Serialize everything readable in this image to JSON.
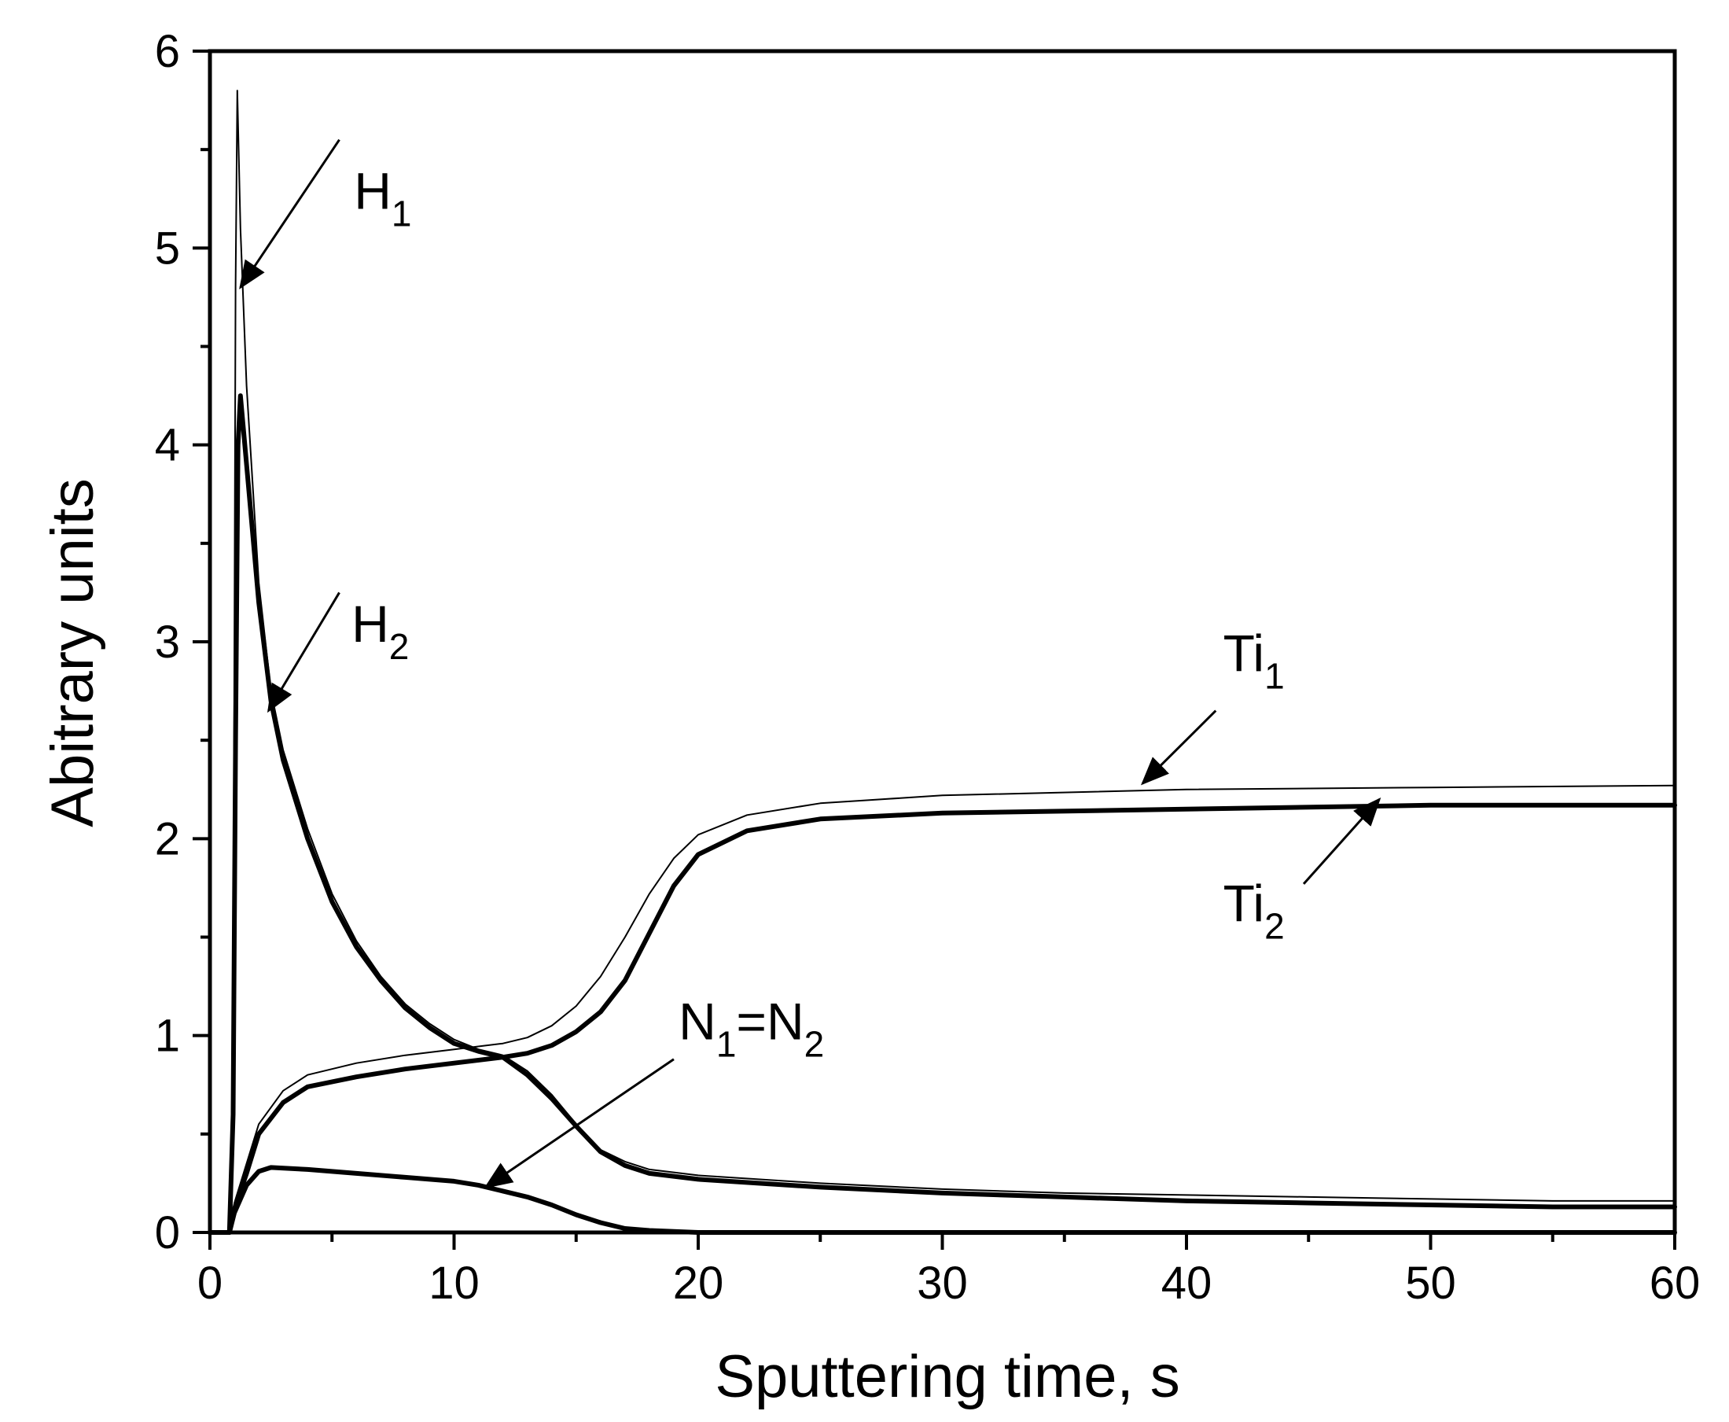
{
  "chart_data": {
    "type": "line",
    "title": "",
    "xlabel": "Sputtering time, s",
    "ylabel": "Abitrary units",
    "xlim": [
      0,
      60
    ],
    "ylim": [
      0,
      6
    ],
    "xticks": [
      0,
      10,
      20,
      30,
      40,
      50,
      60
    ],
    "yticks": [
      0,
      1,
      2,
      3,
      4,
      5,
      6
    ],
    "grid": false,
    "legend": "none",
    "series": [
      {
        "name": "H1",
        "style": "thin",
        "points": [
          [
            0,
            0
          ],
          [
            0.8,
            0
          ],
          [
            0.95,
            1.0
          ],
          [
            1.05,
            4.8
          ],
          [
            1.12,
            5.8
          ],
          [
            1.25,
            5.1
          ],
          [
            1.5,
            4.3
          ],
          [
            2.0,
            3.3
          ],
          [
            2.5,
            2.75
          ],
          [
            3,
            2.45
          ],
          [
            4,
            2.05
          ],
          [
            5,
            1.72
          ],
          [
            6,
            1.48
          ],
          [
            7,
            1.3
          ],
          [
            8,
            1.16
          ],
          [
            9,
            1.06
          ],
          [
            10,
            0.98
          ],
          [
            11,
            0.93
          ],
          [
            12,
            0.9
          ],
          [
            13,
            0.82
          ],
          [
            14,
            0.7
          ],
          [
            15,
            0.55
          ],
          [
            16,
            0.42
          ],
          [
            17,
            0.36
          ],
          [
            18,
            0.32
          ],
          [
            20,
            0.29
          ],
          [
            25,
            0.25
          ],
          [
            30,
            0.22
          ],
          [
            35,
            0.2
          ],
          [
            40,
            0.19
          ],
          [
            45,
            0.18
          ],
          [
            50,
            0.17
          ],
          [
            55,
            0.16
          ],
          [
            60,
            0.16
          ]
        ]
      },
      {
        "name": "H2",
        "style": "thick",
        "points": [
          [
            0,
            0
          ],
          [
            0.8,
            0
          ],
          [
            0.95,
            0.6
          ],
          [
            1.05,
            2.5
          ],
          [
            1.15,
            4.0
          ],
          [
            1.25,
            4.25
          ],
          [
            1.5,
            3.9
          ],
          [
            2.0,
            3.2
          ],
          [
            2.5,
            2.7
          ],
          [
            3,
            2.4
          ],
          [
            4,
            2.0
          ],
          [
            5,
            1.68
          ],
          [
            6,
            1.45
          ],
          [
            7,
            1.28
          ],
          [
            8,
            1.14
          ],
          [
            9,
            1.04
          ],
          [
            10,
            0.96
          ],
          [
            11,
            0.92
          ],
          [
            12,
            0.89
          ],
          [
            13,
            0.8
          ],
          [
            14,
            0.68
          ],
          [
            15,
            0.54
          ],
          [
            16,
            0.41
          ],
          [
            17,
            0.34
          ],
          [
            18,
            0.3
          ],
          [
            20,
            0.27
          ],
          [
            25,
            0.23
          ],
          [
            30,
            0.2
          ],
          [
            35,
            0.18
          ],
          [
            40,
            0.16
          ],
          [
            45,
            0.15
          ],
          [
            50,
            0.14
          ],
          [
            55,
            0.13
          ],
          [
            60,
            0.13
          ]
        ]
      },
      {
        "name": "Ti1",
        "style": "thin",
        "points": [
          [
            0,
            0
          ],
          [
            0.8,
            0
          ],
          [
            1.0,
            0.15
          ],
          [
            1.5,
            0.35
          ],
          [
            2,
            0.55
          ],
          [
            3,
            0.72
          ],
          [
            4,
            0.8
          ],
          [
            6,
            0.86
          ],
          [
            8,
            0.9
          ],
          [
            10,
            0.93
          ],
          [
            12,
            0.96
          ],
          [
            13,
            0.99
          ],
          [
            14,
            1.05
          ],
          [
            15,
            1.15
          ],
          [
            16,
            1.3
          ],
          [
            17,
            1.5
          ],
          [
            18,
            1.72
          ],
          [
            19,
            1.9
          ],
          [
            20,
            2.02
          ],
          [
            22,
            2.12
          ],
          [
            25,
            2.18
          ],
          [
            30,
            2.22
          ],
          [
            40,
            2.25
          ],
          [
            50,
            2.26
          ],
          [
            60,
            2.27
          ]
        ]
      },
      {
        "name": "Ti2",
        "style": "thick",
        "points": [
          [
            0,
            0
          ],
          [
            0.8,
            0
          ],
          [
            1.0,
            0.12
          ],
          [
            1.5,
            0.3
          ],
          [
            2,
            0.5
          ],
          [
            3,
            0.66
          ],
          [
            4,
            0.74
          ],
          [
            6,
            0.79
          ],
          [
            8,
            0.83
          ],
          [
            10,
            0.86
          ],
          [
            12,
            0.89
          ],
          [
            13,
            0.91
          ],
          [
            14,
            0.95
          ],
          [
            15,
            1.02
          ],
          [
            16,
            1.12
          ],
          [
            17,
            1.28
          ],
          [
            18,
            1.52
          ],
          [
            19,
            1.76
          ],
          [
            20,
            1.92
          ],
          [
            22,
            2.04
          ],
          [
            25,
            2.1
          ],
          [
            30,
            2.13
          ],
          [
            40,
            2.15
          ],
          [
            50,
            2.17
          ],
          [
            60,
            2.17
          ]
        ]
      },
      {
        "name": "N1=N2",
        "style": "thick",
        "points": [
          [
            0,
            0
          ],
          [
            0.8,
            0
          ],
          [
            1.0,
            0.1
          ],
          [
            1.5,
            0.24
          ],
          [
            2,
            0.31
          ],
          [
            2.5,
            0.33
          ],
          [
            4,
            0.32
          ],
          [
            6,
            0.3
          ],
          [
            8,
            0.28
          ],
          [
            10,
            0.26
          ],
          [
            11,
            0.24
          ],
          [
            12,
            0.21
          ],
          [
            13,
            0.18
          ],
          [
            14,
            0.14
          ],
          [
            15,
            0.09
          ],
          [
            16,
            0.05
          ],
          [
            17,
            0.02
          ],
          [
            18,
            0.01
          ],
          [
            20,
            0.0
          ],
          [
            30,
            0.0
          ],
          [
            60,
            0.0
          ]
        ]
      }
    ],
    "annotations": [
      {
        "label": "H",
        "sub": "1",
        "text_at": [
          5.9,
          5.2
        ],
        "arrow_from": [
          5.3,
          5.55
        ],
        "arrow_to": [
          1.25,
          4.8
        ]
      },
      {
        "label": "H",
        "sub": "2",
        "text_at": [
          5.8,
          3.0
        ],
        "arrow_from": [
          5.3,
          3.25
        ],
        "arrow_to": [
          2.4,
          2.65
        ]
      },
      {
        "label": "Ti",
        "sub": "1",
        "text_at": [
          41.5,
          2.85
        ],
        "arrow_from": [
          41.2,
          2.65
        ],
        "arrow_to": [
          38.2,
          2.28
        ]
      },
      {
        "label": "Ti",
        "sub": "2",
        "text_at": [
          41.5,
          1.58
        ],
        "arrow_from": [
          44.8,
          1.77
        ],
        "arrow_to": [
          47.9,
          2.2
        ]
      },
      {
        "label": "N",
        "sub": "1",
        "label2": "=N",
        "sub2": "2",
        "text_at": [
          19.2,
          0.98
        ],
        "arrow_from": [
          19.0,
          0.88
        ],
        "arrow_to": [
          11.3,
          0.23
        ]
      }
    ]
  }
}
